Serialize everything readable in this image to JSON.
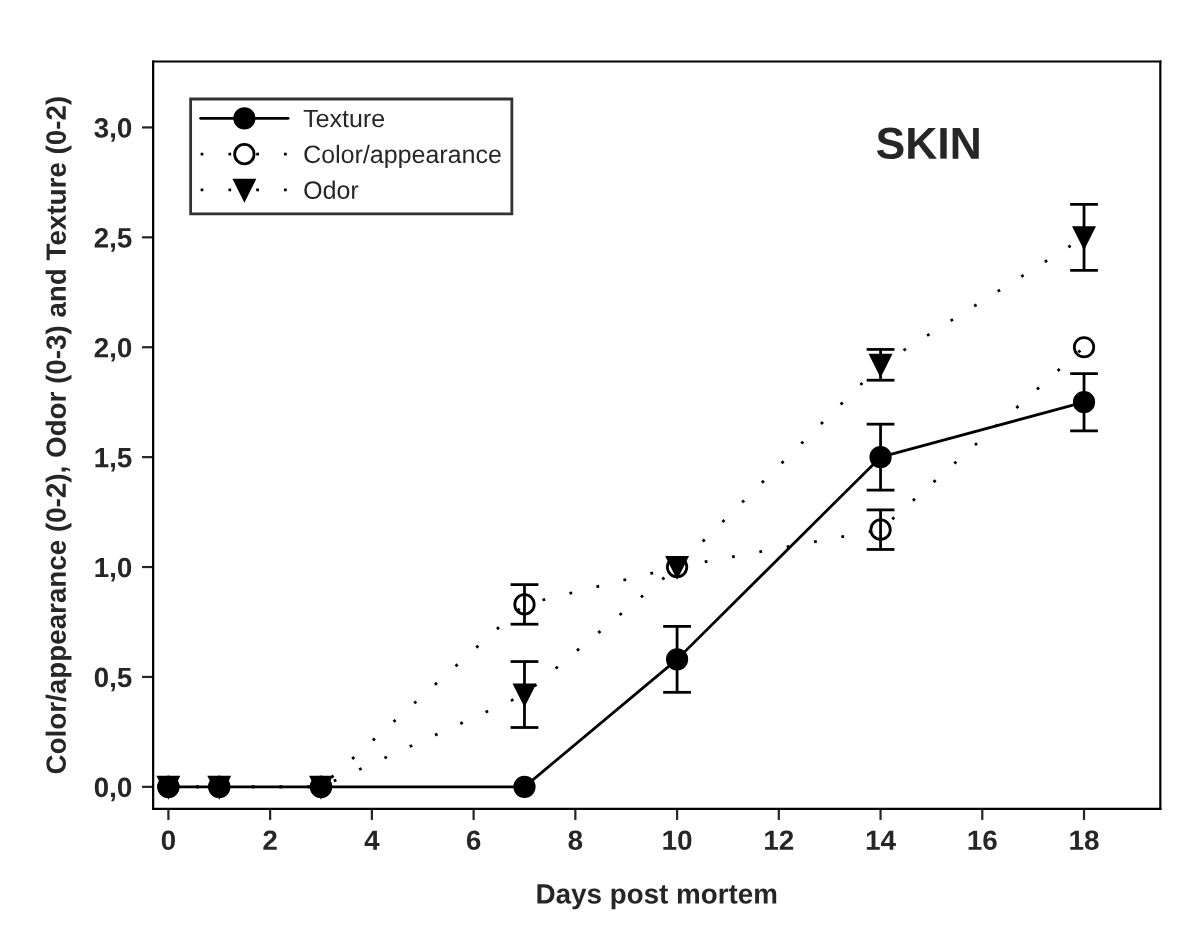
{
  "chart_data": {
    "type": "line",
    "xlabel": "Days post mortem",
    "ylabel": "Color/appearance (0-2), Odor (0-3) and Texture (0-2)",
    "annotations": [
      "SKIN"
    ],
    "x": [
      0,
      1,
      3,
      7,
      10,
      14,
      18
    ],
    "series": [
      {
        "name": "Texture",
        "color": "#000000",
        "values": [
          0,
          0,
          0,
          0,
          0.58,
          1.5,
          1.75
        ],
        "errors": [
          null,
          null,
          null,
          null,
          0.15,
          0.15,
          0.13
        ],
        "marker": "circle",
        "line_style": "solid"
      },
      {
        "name": "Color/appearance",
        "color": "#000000",
        "values": [
          0,
          0,
          0,
          0.83,
          1.0,
          1.17,
          2.0
        ],
        "errors": [
          null,
          null,
          null,
          0.09,
          null,
          0.09,
          null
        ],
        "marker": "open circle",
        "line_style": "dotted"
      },
      {
        "name": "Odor",
        "color": "#000000",
        "values": [
          0,
          0,
          0,
          0.42,
          1.0,
          1.92,
          2.5
        ],
        "errors": [
          null,
          null,
          null,
          0.15,
          null,
          0.07,
          0.15
        ],
        "marker": "triangle",
        "line_style": "dotted"
      }
    ],
    "xlim": [
      -0.3,
      19.5
    ],
    "ylim": [
      -0.1,
      3.3
    ],
    "xticks": [
      0,
      2,
      4,
      6,
      8,
      10,
      12,
      14,
      16,
      18
    ],
    "yticks": [
      {
        "value": 0,
        "label": "0,0"
      },
      {
        "value": 0.5,
        "label": "0,5"
      },
      {
        "value": 1,
        "label": "1,0"
      },
      {
        "value": 1.5,
        "label": "1,5"
      },
      {
        "value": 2,
        "label": "2,0"
      },
      {
        "value": 2.5,
        "label": "2,5"
      },
      {
        "value": 3,
        "label": "3,0"
      }
    ],
    "legend": "top left",
    "grid": false
  }
}
